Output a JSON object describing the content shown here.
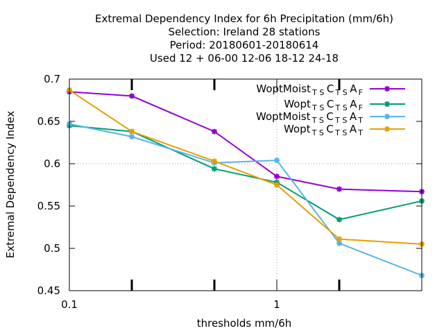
{
  "chart_data": {
    "type": "line",
    "title_lines": [
      "Extremal Dependency Index  for 6h Precipitation (mm/6h)",
      "Selection: Ireland     28 stations",
      "Period: 20180601-20180614",
      "Used  12 + 06-00 12-06 18-12 24-18"
    ],
    "xlabel": "thresholds mm/6h",
    "ylabel": "Extremal Dependency Index",
    "x_scale": "log",
    "xlim": [
      0.1,
      5
    ],
    "ylim": [
      0.45,
      0.7
    ],
    "x_tick_labels": [
      {
        "value": 0.1,
        "label": "0.1"
      },
      {
        "value": 1,
        "label": "1"
      }
    ],
    "x_minor_ticks": [
      0.2,
      0.5,
      2
    ],
    "y_ticks": [
      {
        "value": 0.45,
        "label": "0.45"
      },
      {
        "value": 0.5,
        "label": "0.5"
      },
      {
        "value": 0.55,
        "label": "0.55"
      },
      {
        "value": 0.6,
        "label": "0.6"
      },
      {
        "value": 0.65,
        "label": "0.65"
      },
      {
        "value": 0.7,
        "label": "0.7"
      }
    ],
    "grid": "dotted at x=1 and y=0.6",
    "legend_position": "top-right",
    "x": [
      0.1,
      0.2,
      0.5,
      1,
      2,
      5
    ],
    "series": [
      {
        "name_parts": [
          "WoptMoist",
          "TS",
          "C",
          "TS",
          "A",
          "F"
        ],
        "color": "#9400d3",
        "values": [
          0.685,
          0.68,
          0.638,
          0.585,
          0.57,
          0.567
        ]
      },
      {
        "name_parts": [
          "Wopt",
          "TS",
          "C",
          "TS",
          "A",
          "F"
        ],
        "color": "#009e73",
        "values": [
          0.645,
          0.638,
          0.594,
          0.578,
          0.534,
          0.556
        ]
      },
      {
        "name_parts": [
          "WoptMoist",
          "TS",
          "C",
          "TS",
          "A",
          "T"
        ],
        "color": "#56b4e9",
        "values": [
          0.647,
          0.632,
          0.601,
          0.604,
          0.506,
          0.468
        ]
      },
      {
        "name_parts": [
          "Wopt",
          "TS",
          "C",
          "TS",
          "A",
          "T"
        ],
        "color": "#e69f00",
        "values": [
          0.687,
          0.638,
          0.603,
          0.575,
          0.511,
          0.505
        ]
      }
    ]
  }
}
